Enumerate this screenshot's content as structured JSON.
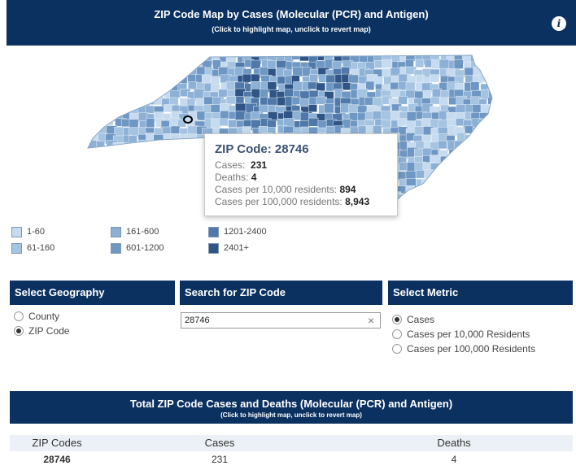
{
  "header": {
    "title": "ZIP Code Map by Cases (Molecular (PCR) and Antigen)",
    "subtitle": "(Click to highlight map, unclick to revert map)",
    "info_icon": "info-icon"
  },
  "tooltip": {
    "title": "ZIP Code: 28746",
    "cases_label": "Cases:",
    "cases_value": "231",
    "deaths_label": "Deaths:",
    "deaths_value": "4",
    "per10k_label": "Cases per 10,000 residents:",
    "per10k_value": "894",
    "per100k_label": "Cases per 100,000 residents:",
    "per100k_value": "8,943"
  },
  "legend": [
    {
      "label": "1-60",
      "color": "#c6dbef"
    },
    {
      "label": "61-160",
      "color": "#a5c4e2"
    },
    {
      "label": "161-600",
      "color": "#8db1d6"
    },
    {
      "label": "601-1200",
      "color": "#6f97c3"
    },
    {
      "label": "1201-2400",
      "color": "#5079a9"
    },
    {
      "label": "2401+",
      "color": "#2f5485"
    }
  ],
  "geography": {
    "header": "Select Geography",
    "options": [
      {
        "label": "County",
        "checked": false
      },
      {
        "label": "ZIP Code",
        "checked": true
      }
    ]
  },
  "search": {
    "header": "Search for ZIP Code",
    "value": "28746",
    "clear_icon": "close-icon"
  },
  "metric": {
    "header": "Select Metric",
    "options": [
      {
        "label": "Cases",
        "checked": true
      },
      {
        "label": "Cases per 10,000 Residents",
        "checked": false
      },
      {
        "label": "Cases per 100,000 Residents",
        "checked": false
      }
    ]
  },
  "table": {
    "title": "Total ZIP Code Cases and Deaths (Molecular (PCR) and Antigen)",
    "subtitle": "(Click to highlight map, unclick to revert map)",
    "columns": [
      "ZIP Codes",
      "Cases",
      "Deaths"
    ],
    "rows": [
      [
        "28746",
        "231",
        "4"
      ]
    ]
  },
  "colors": {
    "navy": "#0b3160",
    "map_shades": [
      "#c6dbef",
      "#a5c4e2",
      "#8db1d6",
      "#6f97c3",
      "#5079a9",
      "#2f5485"
    ]
  }
}
